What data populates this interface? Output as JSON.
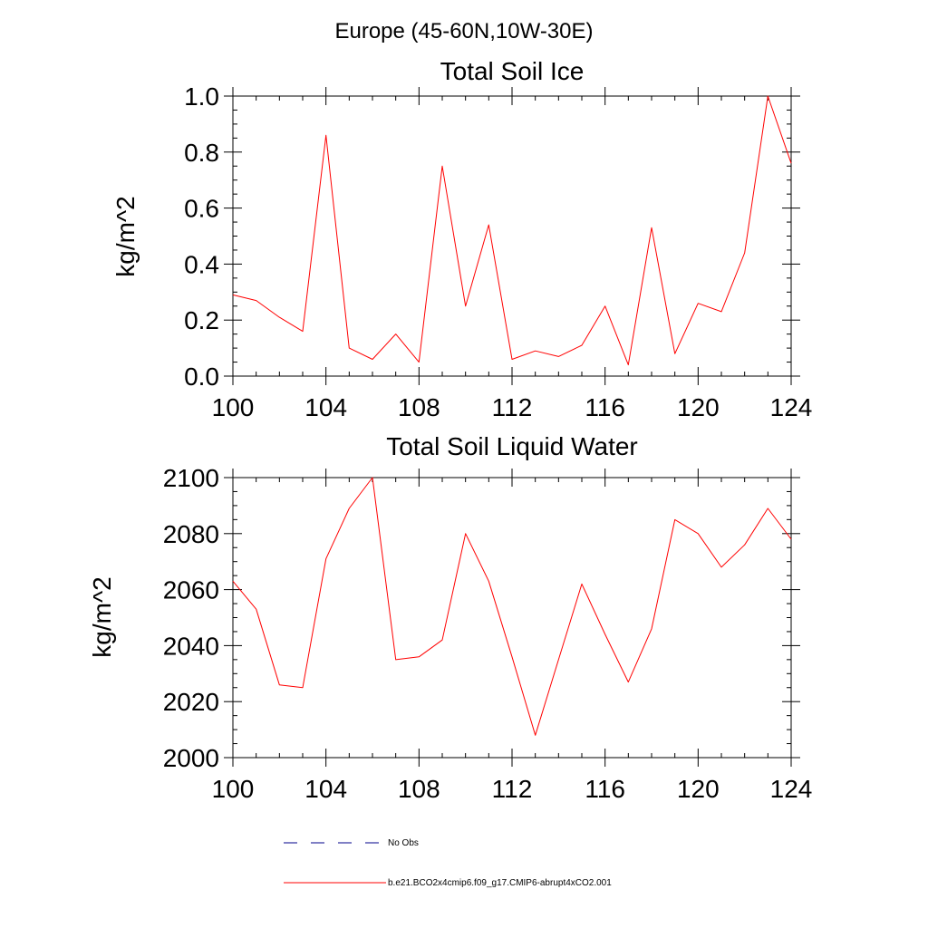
{
  "figure_title": "Europe (45-60N,10W-30E)",
  "chart_data": [
    {
      "type": "line",
      "title": "Total Soil Ice",
      "ylabel": "kg/m^2",
      "xlim": [
        100,
        124
      ],
      "ylim": [
        0.0,
        1.0
      ],
      "xticks": [
        100,
        104,
        108,
        112,
        116,
        120,
        124
      ],
      "xtick_labels": [
        "100",
        "104",
        "108",
        "112",
        "116",
        "120",
        "124"
      ],
      "yticks": [
        0.0,
        0.2,
        0.4,
        0.6,
        0.8,
        1.0
      ],
      "ytick_labels": [
        "0.0",
        "0.2",
        "0.4",
        "0.6",
        "0.8",
        "1.0"
      ],
      "grid": false,
      "x": [
        100,
        101,
        102,
        103,
        104,
        105,
        106,
        107,
        108,
        109,
        110,
        111,
        112,
        113,
        114,
        115,
        116,
        117,
        118,
        119,
        120,
        121,
        122,
        123,
        124
      ],
      "series": [
        {
          "name": "b.e21.BCO2x4cmip6.f09_g17.CMIP6-abrupt4xCO2.001",
          "color": "#ff0000",
          "values": [
            0.29,
            0.27,
            0.21,
            0.16,
            0.86,
            0.1,
            0.06,
            0.15,
            0.05,
            0.75,
            0.25,
            0.54,
            0.06,
            0.09,
            0.07,
            0.11,
            0.25,
            0.04,
            0.53,
            0.08,
            0.26,
            0.23,
            0.44,
            1.0,
            0.76
          ]
        }
      ]
    },
    {
      "type": "line",
      "title": "Total Soil Liquid Water",
      "ylabel": "kg/m^2",
      "xlim": [
        100,
        124
      ],
      "ylim": [
        2000,
        2100
      ],
      "xticks": [
        100,
        104,
        108,
        112,
        116,
        120,
        124
      ],
      "xtick_labels": [
        "100",
        "104",
        "108",
        "112",
        "116",
        "120",
        "124"
      ],
      "yticks": [
        2000,
        2020,
        2040,
        2060,
        2080,
        2100
      ],
      "ytick_labels": [
        "2000",
        "2020",
        "2040",
        "2060",
        "2080",
        "2100"
      ],
      "grid": false,
      "x": [
        100,
        101,
        102,
        103,
        104,
        105,
        106,
        107,
        108,
        109,
        110,
        111,
        112,
        113,
        114,
        115,
        116,
        117,
        118,
        119,
        120,
        121,
        122,
        123,
        124
      ],
      "series": [
        {
          "name": "b.e21.BCO2x4cmip6.f09_g17.CMIP6-abrupt4xCO2.001",
          "color": "#ff0000",
          "values": [
            2063,
            2053,
            2026,
            2025,
            2071,
            2089,
            2100,
            2035,
            2036,
            2042,
            2080,
            2063,
            2036,
            2008,
            2035,
            2062,
            2044,
            2027,
            2046,
            2085,
            2080,
            2068,
            2076,
            2089,
            2078
          ]
        }
      ]
    }
  ],
  "legend": {
    "placement": "bottom",
    "items": [
      {
        "label": "No Obs",
        "color": "#00008b",
        "style": "dashed"
      },
      {
        "label": "b.e21.BCO2x4cmip6.f09_g17.CMIP6-abrupt4xCO2.001",
        "color": "#ff0000",
        "style": "solid"
      }
    ]
  }
}
